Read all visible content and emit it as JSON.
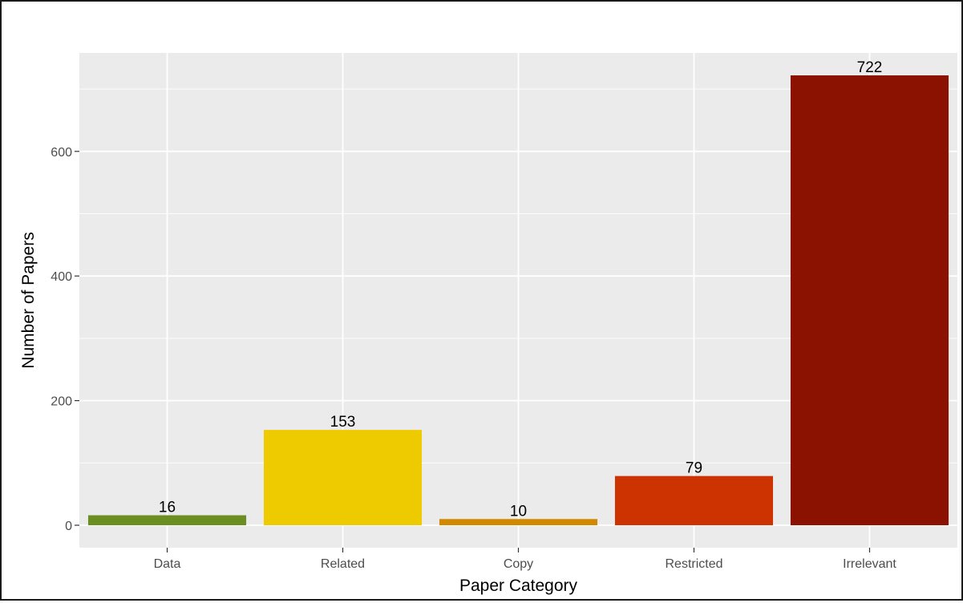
{
  "chart_data": {
    "type": "bar",
    "title": "",
    "xlabel": "Paper Category",
    "ylabel": "Number of Papers",
    "categories": [
      "Data",
      "Related",
      "Copy",
      "Restricted",
      "Irrelevant"
    ],
    "values": [
      16,
      153,
      10,
      79,
      722
    ],
    "data_labels": [
      "16",
      "153",
      "10",
      "79",
      "722"
    ],
    "bar_colors": [
      "#6b8e23",
      "#eecb00",
      "#d18a00",
      "#cc3300",
      "#8b1100"
    ],
    "ylim": [
      -36,
      758
    ],
    "y_ticks": [
      0,
      200,
      400,
      600
    ],
    "y_tick_labels": [
      "0",
      "200",
      "400",
      "600"
    ],
    "grid": true,
    "legend": "none",
    "panel_background": "#ebebeb",
    "grid_color": "#ffffff"
  }
}
